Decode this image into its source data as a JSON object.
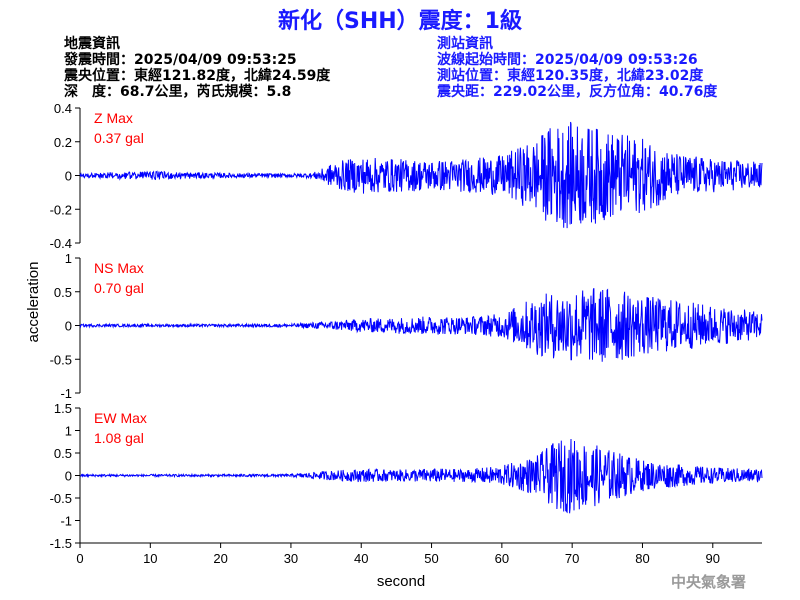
{
  "header": {
    "title": "新化（SHH）震度：1級"
  },
  "earthquake_info": {
    "heading": "地震資訊",
    "origin_time": "發震時間：2025/04/09 09:53:25",
    "epicenter": "震央位置：東經121.82度，北緯24.59度",
    "depth_magnitude": "深　度：68.7公里，芮氏規模：5.8"
  },
  "station_info": {
    "heading": "測站資訊",
    "wave_start": "波線起始時間：2025/04/09 09:53:26",
    "station_location": "測站位置：東經120.35度，北緯23.02度",
    "distance": "震央距：229.02公里，反方位角：40.76度"
  },
  "footer": {
    "agency": "中央氣象署"
  },
  "chart_data": {
    "type": "line",
    "xlabel": "second",
    "ylabel": "acceleration",
    "xlim": [
      0,
      97
    ],
    "x_ticks": [
      0,
      10,
      20,
      30,
      40,
      50,
      60,
      70,
      80,
      90
    ],
    "line_color": "#0000ff",
    "label_color": "#ff0000",
    "grid": false,
    "envelope_note_units": "gal",
    "series": [
      {
        "name": "Z Max",
        "max_label": "0.37 gal",
        "ylim": [
          -0.4,
          0.4
        ],
        "y_ticks": [
          "0.4",
          "0.2",
          "0",
          "-0.2",
          "-0.4"
        ],
        "y_tick_values": [
          0.4,
          0.2,
          0,
          -0.2,
          -0.4
        ],
        "envelope_time": [
          0,
          5,
          10,
          15,
          20,
          25,
          30,
          33,
          35,
          36,
          40,
          45,
          50,
          55,
          60,
          65,
          67,
          70,
          75,
          80,
          85,
          90,
          97
        ],
        "envelope_amp": [
          0.012,
          0.02,
          0.025,
          0.02,
          0.015,
          0.013,
          0.012,
          0.015,
          0.05,
          0.08,
          0.11,
          0.1,
          0.09,
          0.1,
          0.12,
          0.22,
          0.3,
          0.32,
          0.27,
          0.22,
          0.13,
          0.1,
          0.08
        ]
      },
      {
        "name": "NS Max",
        "max_label": "0.70 gal",
        "ylim": [
          -1,
          1
        ],
        "y_ticks": [
          "1",
          "0.5",
          "0",
          "-0.5",
          "-1"
        ],
        "y_tick_values": [
          1,
          0.5,
          0,
          -0.5,
          -1
        ],
        "envelope_time": [
          0,
          10,
          20,
          30,
          35,
          40,
          45,
          50,
          55,
          60,
          65,
          70,
          75,
          80,
          85,
          90,
          97
        ],
        "envelope_amp": [
          0.02,
          0.02,
          0.02,
          0.025,
          0.06,
          0.1,
          0.12,
          0.14,
          0.13,
          0.18,
          0.45,
          0.55,
          0.58,
          0.45,
          0.38,
          0.3,
          0.2
        ]
      },
      {
        "name": "EW Max",
        "max_label": "1.08 gal",
        "ylim": [
          -1.5,
          1.5
        ],
        "y_ticks": [
          "1.5",
          "1",
          "0.5",
          "0",
          "-0.5",
          "-1",
          "-1.5"
        ],
        "y_tick_values": [
          1.5,
          1,
          0.5,
          0,
          -0.5,
          -1,
          -1.5
        ],
        "envelope_time": [
          0,
          10,
          20,
          30,
          35,
          40,
          45,
          50,
          55,
          60,
          65,
          68,
          70,
          75,
          80,
          85,
          90,
          97
        ],
        "envelope_amp": [
          0.025,
          0.025,
          0.025,
          0.03,
          0.1,
          0.15,
          0.13,
          0.16,
          0.14,
          0.22,
          0.45,
          0.8,
          0.85,
          0.6,
          0.35,
          0.25,
          0.18,
          0.15
        ]
      }
    ]
  }
}
